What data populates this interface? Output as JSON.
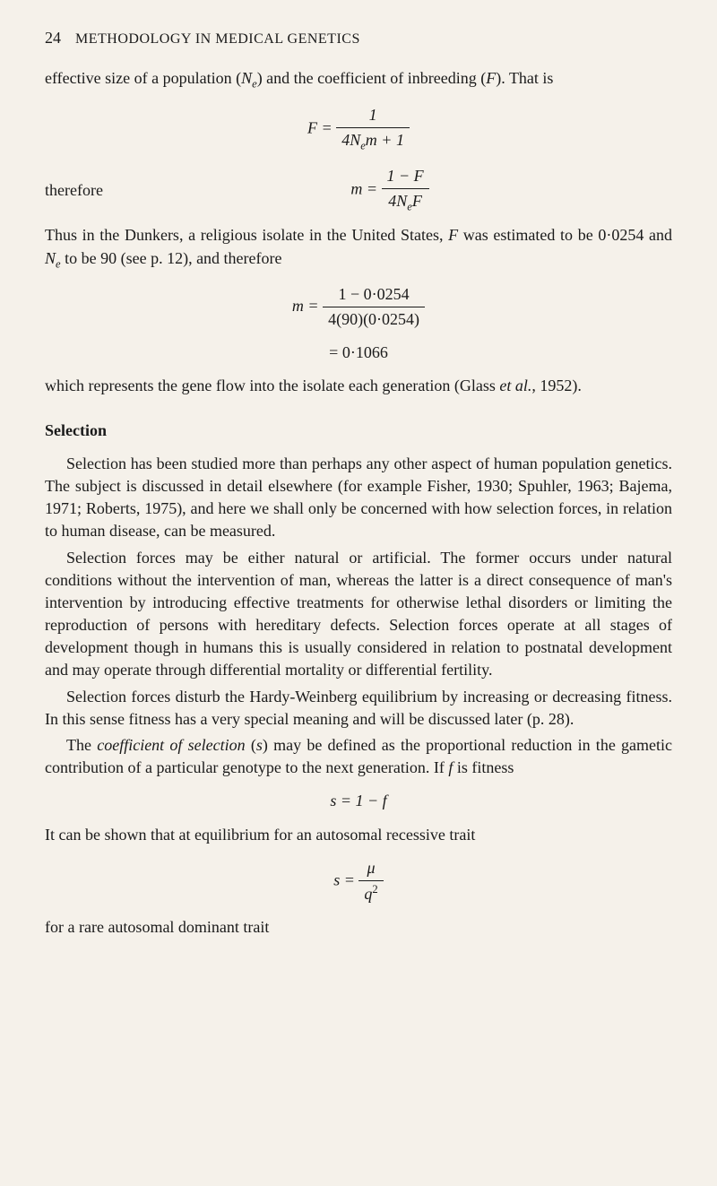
{
  "header": {
    "page_number": "24",
    "title": "METHODOLOGY IN MEDICAL GENETICS"
  },
  "intro": {
    "line1_part1": "effective size of a population (",
    "line1_Ne_N": "N",
    "line1_Ne_e": "e",
    "line1_part2": ") and the coefficient of inbreeding (",
    "line1_F": "F",
    "line1_part3": ").",
    "line2": "That is"
  },
  "formula1": {
    "lhs": "F = ",
    "num": "1",
    "den_4N": "4N",
    "den_e": "e",
    "den_m1": "m + 1"
  },
  "therefore_label": "therefore",
  "formula2": {
    "lhs": "m = ",
    "num_1F": "1 − F",
    "den_4N": "4N",
    "den_e": "e",
    "den_F": "F"
  },
  "dunkers": {
    "p1_a": "Thus in the Dunkers, a religious isolate in the United States, ",
    "p1_F": "F",
    "p1_b": " was estimated to be 0·0254 and ",
    "p1_N": "N",
    "p1_e": "e",
    "p1_c": " to be 90 (see p. 12), and therefore"
  },
  "formula3": {
    "lhs": "m = ",
    "num": "1 − 0·0254",
    "den": "4(90)(0·0254)",
    "result": "= 0·1066"
  },
  "glass": {
    "a": "which represents the gene flow into the isolate each generation (Glass ",
    "etal": "et al.",
    "b": ", 1952)."
  },
  "selection": {
    "heading": "Selection",
    "p1": "Selection has been studied more than perhaps any other aspect of human population genetics. The subject is discussed in detail elsewhere (for example Fisher, 1930; Spuhler, 1963; Bajema, 1971; Roberts, 1975), and here we shall only be concerned with how selection forces, in relation to human disease, can be measured.",
    "p2": "Selection forces may be either natural or artificial. The former occurs under natural conditions without the intervention of man, whereas the latter is a direct consequence of man's intervention by introducing effective treatments for otherwise lethal disorders or limiting the reproduction of persons with hereditary defects. Selection forces operate at all stages of development though in humans this is usually considered in relation to postnatal development and may operate through differential mortality or differential fertility.",
    "p3": "Selection forces disturb the Hardy-Weinberg equilibrium by increasing or decreasing fitness. In this sense fitness has a very special meaning and will be discussed later (p. 28).",
    "p4_a": "The ",
    "p4_term": "coefficient of selection",
    "p4_b": " (",
    "p4_s": "s",
    "p4_c": ") may be defined as the proportional reduction in the gametic contribution of a particular genotype to the next generation. If ",
    "p4_f": "f",
    "p4_d": " is fitness"
  },
  "formula4": {
    "eq": "s = 1 − f"
  },
  "recessive_line": "It can be shown that at equilibrium for an autosomal recessive trait",
  "formula5": {
    "lhs": "s = ",
    "num": "μ",
    "den_q": "q",
    "den_2": "2"
  },
  "dominant_line": "for a rare autosomal dominant trait"
}
